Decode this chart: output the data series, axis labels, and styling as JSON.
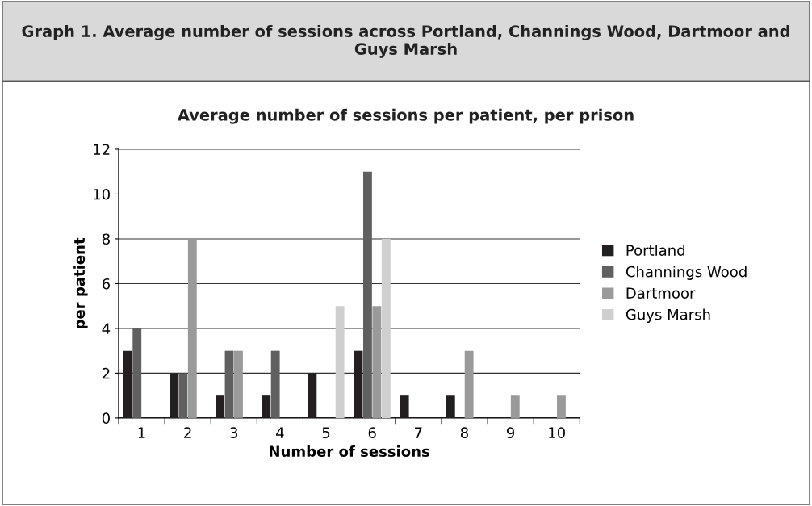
{
  "chart_data": {
    "type": "bar",
    "title": "Graph 1. Average number of sessions across Portland, Channings Wood, Dartmoor and Guys Marsh",
    "subtitle": "Average number of sessions per patient, per prison",
    "xlabel": "Number of sessions",
    "ylabel": "per patient",
    "categories": [
      "1",
      "2",
      "3",
      "4",
      "5",
      "6",
      "7",
      "8",
      "9",
      "10"
    ],
    "series": [
      {
        "name": "Portland",
        "color": "#231f20",
        "values": [
          3,
          2,
          1,
          1,
          2,
          3,
          1,
          1,
          null,
          null
        ]
      },
      {
        "name": "Channings Wood",
        "color": "#606060",
        "values": [
          4,
          2,
          3,
          3,
          null,
          11,
          null,
          null,
          null,
          null
        ]
      },
      {
        "name": "Dartmoor",
        "color": "#9a9a9a",
        "values": [
          null,
          8,
          3,
          null,
          null,
          5,
          null,
          3,
          1,
          1
        ]
      },
      {
        "name": "Guys Marsh",
        "color": "#cfcfcf",
        "values": [
          null,
          null,
          null,
          null,
          5,
          8,
          null,
          null,
          null,
          null
        ]
      }
    ],
    "ylim": [
      0,
      12
    ],
    "yticks": [
      0,
      2,
      4,
      6,
      8,
      10,
      12
    ],
    "grid": "y",
    "legend": "right"
  }
}
